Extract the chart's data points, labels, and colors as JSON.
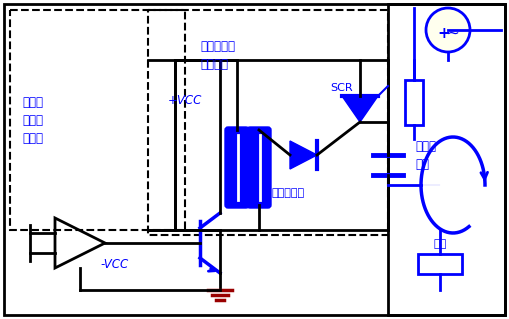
{
  "bg_color": "#ffffff",
  "blue": "#0000FF",
  "black": "#000000",
  "red_dark": "#990000",
  "yellow_bg": "#FFFFEE",
  "label_ctrl_pcb": "控制电\n路印刷\n电路板",
  "label_power_pcb": "功率电路印\n制电路板",
  "label_high_power": "高功率\n线路",
  "label_load": "负载",
  "label_pulse_xfmr": "脉冲变压器",
  "label_scr": "SCR",
  "label_plus_vcc": "+VCC",
  "label_minus_vcc": "-VCC"
}
